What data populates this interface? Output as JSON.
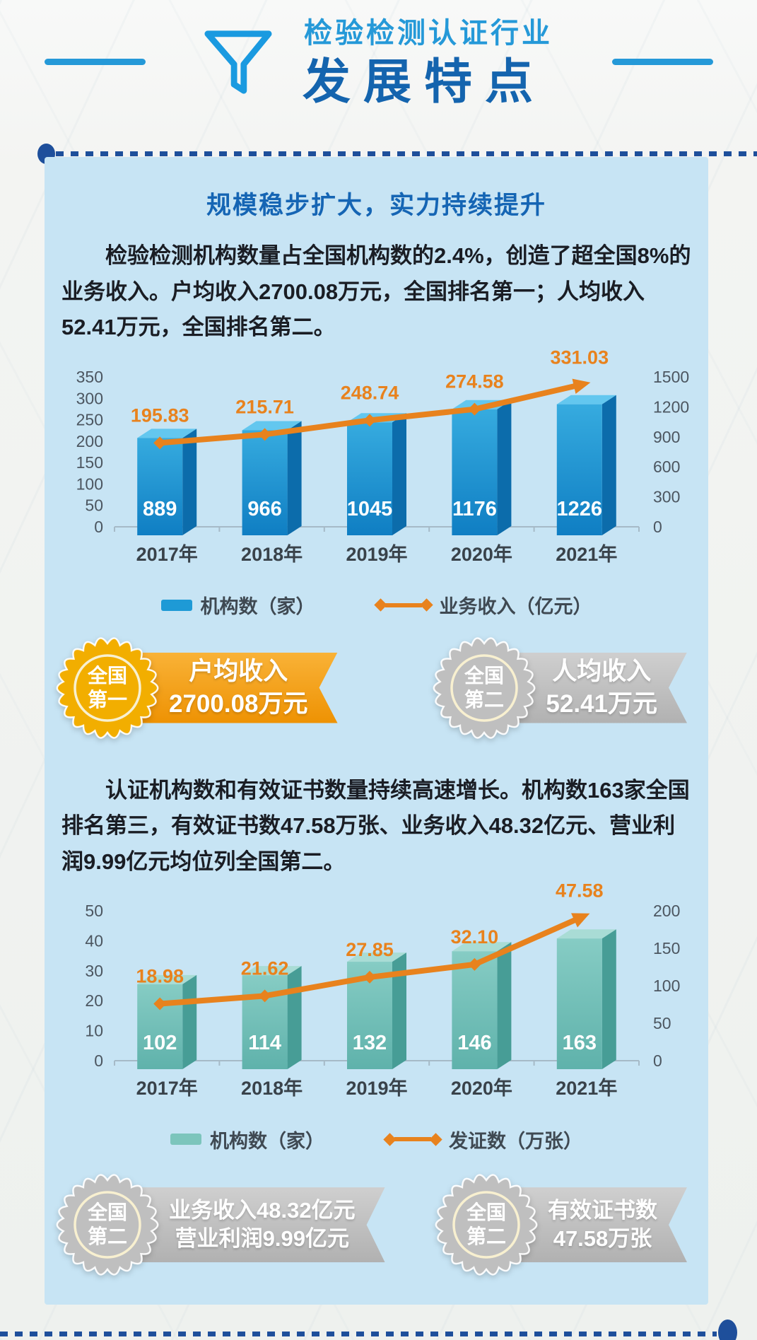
{
  "colors": {
    "accent_blue": "#1a9ae0",
    "subtitle_blue": "#2599d8",
    "title_dark_blue": "#1464ae",
    "navy_dots": "#1e4f9b",
    "panel_bg": "#c7e4f4",
    "section_title_blue": "#1565b4",
    "orange": "#e8821d",
    "bar_blue_front_top": "#36abdf",
    "bar_blue_front_bottom": "#0f7ec3",
    "bar_blue_top": "#63c7ef",
    "bar_blue_side": "#0c6cab",
    "bar_teal_front_top": "#86ccc4",
    "bar_teal_front_bottom": "#5fb2ab",
    "bar_teal_top": "#a9dcd5",
    "bar_teal_side": "#479d96",
    "gold": "#f2ae00",
    "gold_ribbon_top": "#f9b237",
    "gold_ribbon_bottom": "#ee9203",
    "silver": "#bfbfbf",
    "silver_ribbon_top": "#cfcfcf",
    "silver_ribbon_bottom": "#b1b1b1",
    "seal_ring": "#f8f0d0"
  },
  "header": {
    "subtitle": "检验检测认证行业",
    "title": "发展特点"
  },
  "section1": {
    "heading": "规模稳步扩大，实力持续提升",
    "paragraph": "检验检测机构数量占全国机构数的2.4%，创造了超全国8%的业务收入。户均收入2700.08万元，全国排名第一；人均收入52.41万元，全国排名第二。"
  },
  "section2": {
    "paragraph": "认证机构数和有效证书数量持续高速增长。机构数163家全国排名第三，有效证书数47.58万张、业务收入48.32亿元、营业利润9.99亿元均位列全国第二。"
  },
  "chart_data": [
    {
      "type": "bar+line",
      "title": "检验检测机构数与业务收入（2017-2021）",
      "categories": [
        "2017年",
        "2018年",
        "2019年",
        "2020年",
        "2021年"
      ],
      "series": [
        {
          "name": "机构数（家）",
          "type": "bar",
          "axis": "right",
          "values": [
            889,
            966,
            1045,
            1176,
            1226
          ],
          "value_labels": [
            "889",
            "966",
            "1045",
            "1176",
            "1226"
          ]
        },
        {
          "name": "业务收入（亿元）",
          "type": "line",
          "axis": "left",
          "values": [
            195.83,
            215.71,
            248.74,
            274.58,
            331.03
          ],
          "value_labels": [
            "195.83",
            "215.71",
            "248.74",
            "274.58",
            "331.03"
          ]
        }
      ],
      "left_axis": {
        "min": 0,
        "max": 350,
        "step": 50
      },
      "right_axis": {
        "min": 0,
        "max": 1500,
        "step": 300
      },
      "grid": false,
      "legend_position": "bottom",
      "bar_theme": "blue"
    },
    {
      "type": "bar+line",
      "title": "认证机构数与发证数（2017-2021）",
      "categories": [
        "2017年",
        "2018年",
        "2019年",
        "2020年",
        "2021年"
      ],
      "series": [
        {
          "name": "机构数（家）",
          "type": "bar",
          "axis": "right",
          "values": [
            102,
            114,
            132,
            146,
            163
          ],
          "value_labels": [
            "102",
            "114",
            "132",
            "146",
            "163"
          ]
        },
        {
          "name": "发证数（万张）",
          "type": "line",
          "axis": "left",
          "values": [
            18.98,
            21.62,
            27.85,
            32.1,
            47.58
          ],
          "value_labels": [
            "18.98",
            "21.62",
            "27.85",
            "32.10",
            "47.58"
          ]
        }
      ],
      "left_axis": {
        "min": 0,
        "max": 50,
        "step": 10
      },
      "right_axis": {
        "min": 0,
        "max": 200,
        "step": 50
      },
      "grid": false,
      "legend_position": "bottom",
      "bar_theme": "teal"
    }
  ],
  "badges": [
    {
      "medal_line1": "全国",
      "medal_line2": "第一",
      "label_line1": "户均收入",
      "label_line2": "2700.08万元",
      "theme": "gold"
    },
    {
      "medal_line1": "全国",
      "medal_line2": "第二",
      "label_line1": "人均收入",
      "label_line2": "52.41万元",
      "theme": "silver"
    },
    {
      "medal_line1": "全国",
      "medal_line2": "第二",
      "label_line1": "业务收入48.32亿元",
      "label_line2": "营业利润9.99亿元",
      "theme": "silver"
    },
    {
      "medal_line1": "全国",
      "medal_line2": "第二",
      "label_line1": "有效证书数",
      "label_line2": "47.58万张",
      "theme": "silver"
    }
  ]
}
